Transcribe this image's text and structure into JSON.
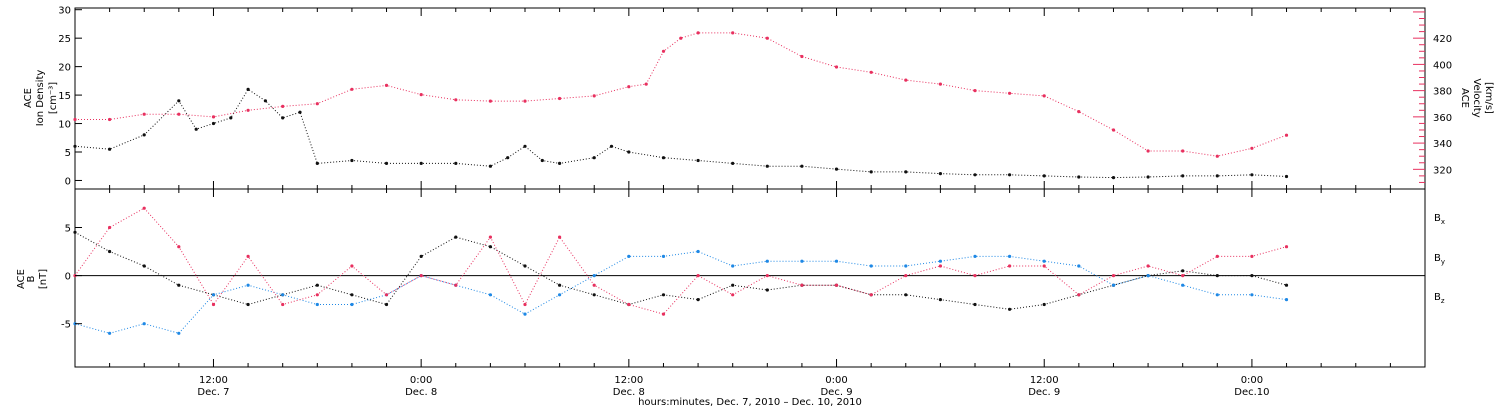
{
  "colors": {
    "black": "#111111",
    "red": "#e8305f",
    "blue": "#1e88e5"
  },
  "x_axis": {
    "title": "hours:minutes, Dec. 7, 2010 – Dec. 10, 2010",
    "ticks": [
      {
        "hour": 12,
        "time": "12:00",
        "day": "Dec. 7"
      },
      {
        "hour": 24,
        "time": "0:00",
        "day": "Dec. 8"
      },
      {
        "hour": 36,
        "time": "12:00",
        "day": "Dec. 8"
      },
      {
        "hour": 48,
        "time": "0:00",
        "day": "Dec. 9"
      },
      {
        "hour": 60,
        "time": "12:00",
        "day": "Dec. 9"
      },
      {
        "hour": 72,
        "time": "0:00",
        "day": "Dec.10"
      }
    ]
  },
  "chart_data": [
    {
      "type": "scatter",
      "title": "",
      "xlabel": "hours:minutes, Dec. 7, 2010 – Dec. 10, 2010",
      "xlim": [
        4,
        82
      ],
      "left_axis": {
        "label": [
          "ACE",
          "Ion Density",
          "[cm⁻³]"
        ],
        "ylim": [
          -1.5,
          30.3
        ],
        "ticks": [
          0,
          5,
          10,
          15,
          20,
          25,
          30
        ]
      },
      "right_axis": {
        "label": [
          "ACE",
          "Velocity",
          "[km/s]"
        ],
        "ylim": [
          305,
          443
        ],
        "ticks": [
          320,
          340,
          360,
          380,
          400,
          420
        ]
      },
      "series": [
        {
          "axis": "left",
          "color": "#111111",
          "points": [
            [
              4,
              6
            ],
            [
              6,
              5.5
            ],
            [
              8,
              8
            ],
            [
              10,
              14
            ],
            [
              11,
              9
            ],
            [
              12,
              10
            ],
            [
              13,
              11
            ],
            [
              14,
              16
            ],
            [
              15,
              14
            ],
            [
              16,
              11
            ],
            [
              17,
              12
            ],
            [
              18,
              3
            ],
            [
              20,
              3.5
            ],
            [
              22,
              3
            ],
            [
              24,
              3
            ],
            [
              26,
              3
            ],
            [
              28,
              2.5
            ],
            [
              29,
              4
            ],
            [
              30,
              6
            ],
            [
              31,
              3.5
            ],
            [
              32,
              3
            ],
            [
              34,
              4
            ],
            [
              35,
              6
            ],
            [
              36,
              5
            ],
            [
              38,
              4
            ],
            [
              40,
              3.5
            ],
            [
              42,
              3
            ],
            [
              44,
              2.5
            ],
            [
              46,
              2.5
            ],
            [
              48,
              2
            ],
            [
              50,
              1.5
            ],
            [
              52,
              1.5
            ],
            [
              54,
              1.2
            ],
            [
              56,
              1
            ],
            [
              58,
              1
            ],
            [
              60,
              0.8
            ],
            [
              62,
              0.6
            ],
            [
              64,
              0.5
            ],
            [
              66,
              0.6
            ],
            [
              68,
              0.8
            ],
            [
              70,
              0.8
            ],
            [
              72,
              1
            ],
            [
              74,
              0.7
            ]
          ]
        },
        {
          "axis": "right",
          "color": "#e8305f",
          "points": [
            [
              4,
              358
            ],
            [
              6,
              358
            ],
            [
              8,
              362
            ],
            [
              10,
              362
            ],
            [
              12,
              360
            ],
            [
              14,
              365
            ],
            [
              16,
              368
            ],
            [
              18,
              370
            ],
            [
              20,
              381
            ],
            [
              22,
              384
            ],
            [
              24,
              377
            ],
            [
              26,
              373
            ],
            [
              28,
              372
            ],
            [
              30,
              372
            ],
            [
              32,
              374
            ],
            [
              34,
              376
            ],
            [
              36,
              383
            ],
            [
              37,
              385
            ],
            [
              38,
              410
            ],
            [
              39,
              420
            ],
            [
              40,
              424
            ],
            [
              42,
              424
            ],
            [
              44,
              420
            ],
            [
              46,
              406
            ],
            [
              48,
              398
            ],
            [
              50,
              394
            ],
            [
              52,
              388
            ],
            [
              54,
              385
            ],
            [
              56,
              380
            ],
            [
              58,
              378
            ],
            [
              60,
              376
            ],
            [
              62,
              364
            ],
            [
              64,
              350
            ],
            [
              66,
              334
            ],
            [
              68,
              334
            ],
            [
              70,
              330
            ],
            [
              72,
              336
            ],
            [
              74,
              346
            ]
          ]
        }
      ]
    },
    {
      "type": "scatter",
      "title": "",
      "xlabel": "hours:minutes, Dec. 7, 2010 – Dec. 10, 2010",
      "xlim": [
        4,
        82
      ],
      "left_axis": {
        "label": [
          "ACE",
          "B",
          "[nT]"
        ],
        "ylim": [
          -9.5,
          9.0
        ],
        "ticks": [
          -5,
          0,
          5
        ]
      },
      "legend": [
        "Bx",
        "By",
        "Bz"
      ],
      "series": [
        {
          "name": "Bx",
          "color": "#111111",
          "points": [
            [
              4,
              4.5
            ],
            [
              6,
              2.5
            ],
            [
              8,
              1
            ],
            [
              10,
              -1
            ],
            [
              12,
              -2
            ],
            [
              14,
              -3
            ],
            [
              16,
              -2
            ],
            [
              18,
              -1
            ],
            [
              20,
              -2
            ],
            [
              22,
              -3
            ],
            [
              24,
              2
            ],
            [
              26,
              4
            ],
            [
              28,
              3
            ],
            [
              30,
              1
            ],
            [
              32,
              -1
            ],
            [
              34,
              -2
            ],
            [
              36,
              -3
            ],
            [
              38,
              -2
            ],
            [
              40,
              -2.5
            ],
            [
              42,
              -1
            ],
            [
              44,
              -1.5
            ],
            [
              46,
              -1
            ],
            [
              48,
              -1
            ],
            [
              50,
              -2
            ],
            [
              52,
              -2
            ],
            [
              54,
              -2.5
            ],
            [
              56,
              -3
            ],
            [
              58,
              -3.5
            ],
            [
              60,
              -3
            ],
            [
              62,
              -2
            ],
            [
              64,
              -1
            ],
            [
              66,
              0
            ],
            [
              68,
              0.5
            ],
            [
              70,
              0
            ],
            [
              72,
              0
            ],
            [
              74,
              -1
            ]
          ]
        },
        {
          "name": "By",
          "color": "#1e88e5",
          "points": [
            [
              4,
              -5
            ],
            [
              6,
              -6
            ],
            [
              8,
              -5
            ],
            [
              10,
              -6
            ],
            [
              12,
              -2
            ],
            [
              14,
              -1
            ],
            [
              16,
              -2
            ],
            [
              18,
              -3
            ],
            [
              20,
              -3
            ],
            [
              22,
              -2
            ],
            [
              24,
              0
            ],
            [
              26,
              -1
            ],
            [
              28,
              -2
            ],
            [
              30,
              -4
            ],
            [
              32,
              -2
            ],
            [
              34,
              0
            ],
            [
              36,
              2
            ],
            [
              38,
              2
            ],
            [
              40,
              2.5
            ],
            [
              42,
              1
            ],
            [
              44,
              1.5
            ],
            [
              46,
              1.5
            ],
            [
              48,
              1.5
            ],
            [
              50,
              1
            ],
            [
              52,
              1
            ],
            [
              54,
              1.5
            ],
            [
              56,
              2
            ],
            [
              58,
              2
            ],
            [
              60,
              1.5
            ],
            [
              62,
              1
            ],
            [
              64,
              -1
            ],
            [
              66,
              0
            ],
            [
              68,
              -1
            ],
            [
              70,
              -2
            ],
            [
              72,
              -2
            ],
            [
              74,
              -2.5
            ]
          ]
        },
        {
          "name": "Bz",
          "color": "#e8305f",
          "points": [
            [
              4,
              0
            ],
            [
              6,
              5
            ],
            [
              8,
              7
            ],
            [
              10,
              3
            ],
            [
              12,
              -3
            ],
            [
              14,
              2
            ],
            [
              16,
              -3
            ],
            [
              18,
              -2
            ],
            [
              20,
              1
            ],
            [
              22,
              -2
            ],
            [
              24,
              0
            ],
            [
              26,
              -1
            ],
            [
              28,
              4
            ],
            [
              30,
              -3
            ],
            [
              32,
              4
            ],
            [
              34,
              -1
            ],
            [
              36,
              -3
            ],
            [
              38,
              -4
            ],
            [
              40,
              0
            ],
            [
              42,
              -2
            ],
            [
              44,
              0
            ],
            [
              46,
              -1
            ],
            [
              48,
              -1
            ],
            [
              50,
              -2
            ],
            [
              52,
              0
            ],
            [
              54,
              1
            ],
            [
              56,
              0
            ],
            [
              58,
              1
            ],
            [
              60,
              1
            ],
            [
              62,
              -2
            ],
            [
              64,
              0
            ],
            [
              66,
              1
            ],
            [
              68,
              0
            ],
            [
              70,
              2
            ],
            [
              72,
              2
            ],
            [
              74,
              3
            ]
          ]
        }
      ]
    }
  ]
}
